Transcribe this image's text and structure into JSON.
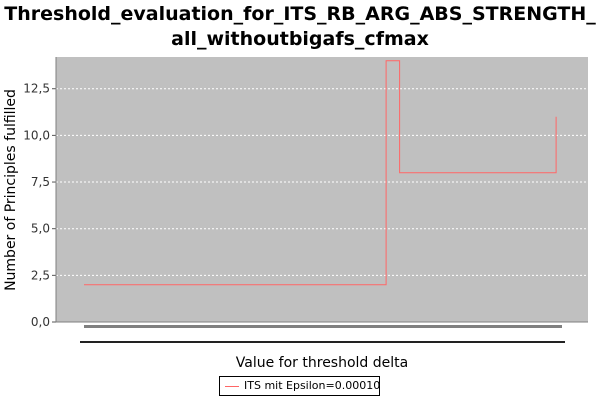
{
  "chart_data": {
    "type": "line",
    "title_line1": "Threshold_evaluation_for_ITS_RB_ARG_ABS_STRENGTH_",
    "title_line2": "all_withoutbigafs_cfmax",
    "xlabel": "Value for threshold delta",
    "ylabel": "Number of Principles fulfilled",
    "ylim": [
      0,
      14.2
    ],
    "yticks": [
      "0,0",
      "2,5",
      "5,0",
      "7,5",
      "10,0",
      "12,5"
    ],
    "ytick_values": [
      0,
      2.5,
      5.0,
      7.5,
      10.0,
      12.5
    ],
    "grid": true,
    "background": "#c0c0c0",
    "legend_position": "bottom-center",
    "series": [
      {
        "name": "ITS mit Epsilon=0.00010",
        "color": "#ff6666",
        "x": [
          0.0,
          0.6334,
          0.6334,
          0.6617,
          0.6617,
          0.9897,
          0.9897
        ],
        "values": [
          2,
          2,
          14,
          14,
          8,
          8,
          11
        ]
      }
    ]
  }
}
